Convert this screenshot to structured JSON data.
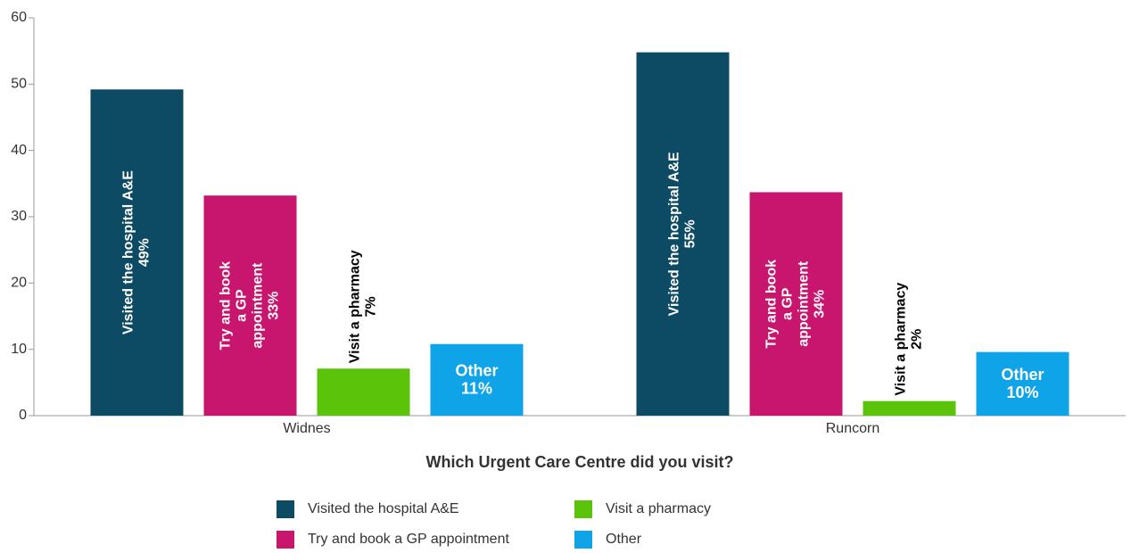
{
  "chart_data": {
    "type": "bar",
    "x_label": "Which Urgent Care Centre did you visit?",
    "categories": [
      "Widnes",
      "Runcorn"
    ],
    "series": [
      {
        "name": "Visited the hospital A&E",
        "color": "#0d4a63",
        "values": [
          49.2,
          54.8
        ],
        "value_labels": [
          "49%",
          "55%"
        ]
      },
      {
        "name": "Try and book a GP appointment",
        "color": "#c8166e",
        "values": [
          33.2,
          33.7
        ],
        "value_labels": [
          "33%",
          "34%"
        ]
      },
      {
        "name": "Visit a pharmacy",
        "color": "#5cc30b",
        "values": [
          7.1,
          2.2
        ],
        "value_labels": [
          "7%",
          "2%"
        ]
      },
      {
        "name": "Other",
        "color": "#0fa3e8",
        "values": [
          10.8,
          9.6
        ],
        "value_labels": [
          "11%",
          "10%"
        ]
      }
    ],
    "ylim": [
      0,
      60
    ],
    "yticks": [
      0,
      10,
      20,
      30,
      40,
      50,
      60
    ],
    "grid": false
  }
}
